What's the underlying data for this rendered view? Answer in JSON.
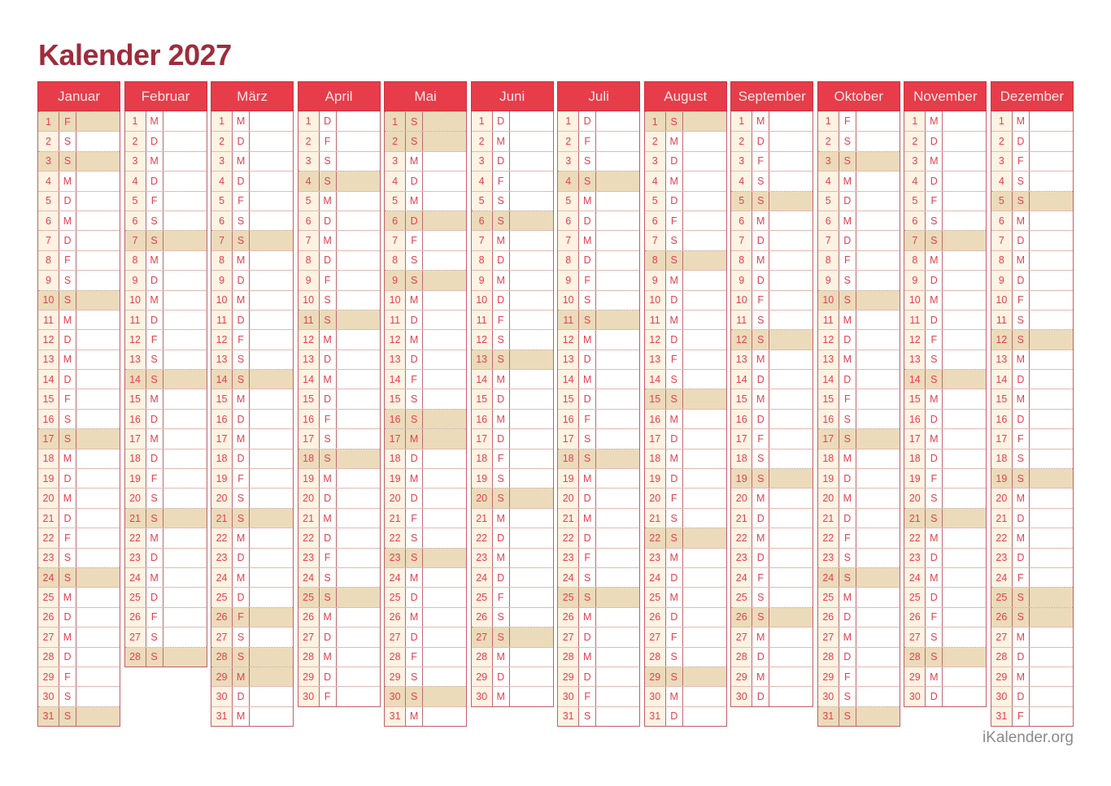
{
  "page": {
    "title": "Kalender 2027",
    "footer": "iKalender.org"
  },
  "colors": {
    "page_bg": "#ffffff",
    "header_bg": "#e73c4a",
    "header_edge": "#cf2e3d",
    "header_text": "#fbe8e4",
    "title_text": "#9e2c3c",
    "day_text": "#e5404d",
    "day_number_bg": "#fdf3e3",
    "highlight_bg": "#ecdbba",
    "grid_vertical": "#c06a6e",
    "grid_vertical_outer": "#c25f66",
    "grid_horizontal": "#e6b8b2",
    "footer_text": "#8e8989"
  },
  "months": [
    {
      "name": "Januar",
      "letters": "FSSMDMDFSSMDMDFSSMDMDFSSMDMDFSS",
      "highlighted_days": [
        1,
        3,
        10,
        17,
        24,
        31
      ]
    },
    {
      "name": "Februar",
      "letters": "MDMDFSSMDMDFSSMDMDFSSMDMDFSS",
      "highlighted_days": [
        7,
        14,
        21,
        28
      ]
    },
    {
      "name": "März",
      "letters": "MDMDFSSMDMDFSSMDMDFSSMDMDFSSMDM",
      "highlighted_days": [
        7,
        14,
        21,
        26,
        28,
        29
      ]
    },
    {
      "name": "April",
      "letters": "DFSSMDMDFSSMDMDFSSMDMDFSSMDMDF",
      "highlighted_days": [
        4,
        11,
        18,
        25
      ]
    },
    {
      "name": "Mai",
      "letters": "SSMDMDFSSMDMDFSSMDMDFSSMDMDFSSM",
      "highlighted_days": [
        1,
        2,
        6,
        9,
        16,
        17,
        23,
        30
      ]
    },
    {
      "name": "Juni",
      "letters": "DMDFSSMDMDFSSMDMDFSSMDMDFSSMDM",
      "highlighted_days": [
        6,
        13,
        20,
        27
      ]
    },
    {
      "name": "Juli",
      "letters": "DFSSMDMDFSSMDMDFSSMDMDFSSMDMDFS",
      "highlighted_days": [
        4,
        11,
        18,
        25
      ]
    },
    {
      "name": "August",
      "letters": "SMDMDFSSMDMDFSSMDMDFSSMDMDFSSMD",
      "highlighted_days": [
        1,
        8,
        15,
        22,
        29
      ]
    },
    {
      "name": "September",
      "letters": "MDFSSMDMDFSSMDMDFSSMDMDFSSMDMD",
      "highlighted_days": [
        5,
        12,
        19,
        26
      ]
    },
    {
      "name": "Oktober",
      "letters": "FSSMDMDFSSMDMDFSSMDMDFSSMDMDFSS",
      "highlighted_days": [
        3,
        10,
        17,
        24,
        31
      ]
    },
    {
      "name": "November",
      "letters": "MDMDFSSMDMDFSSMDMDFSSMDMDFSSMD",
      "highlighted_days": [
        7,
        14,
        21,
        28
      ]
    },
    {
      "name": "Dezember",
      "letters": "MDFSSMDMDFSSMDMDFSSMDMDFSSMDMDF",
      "highlighted_days": [
        5,
        12,
        19,
        25,
        26
      ]
    }
  ]
}
